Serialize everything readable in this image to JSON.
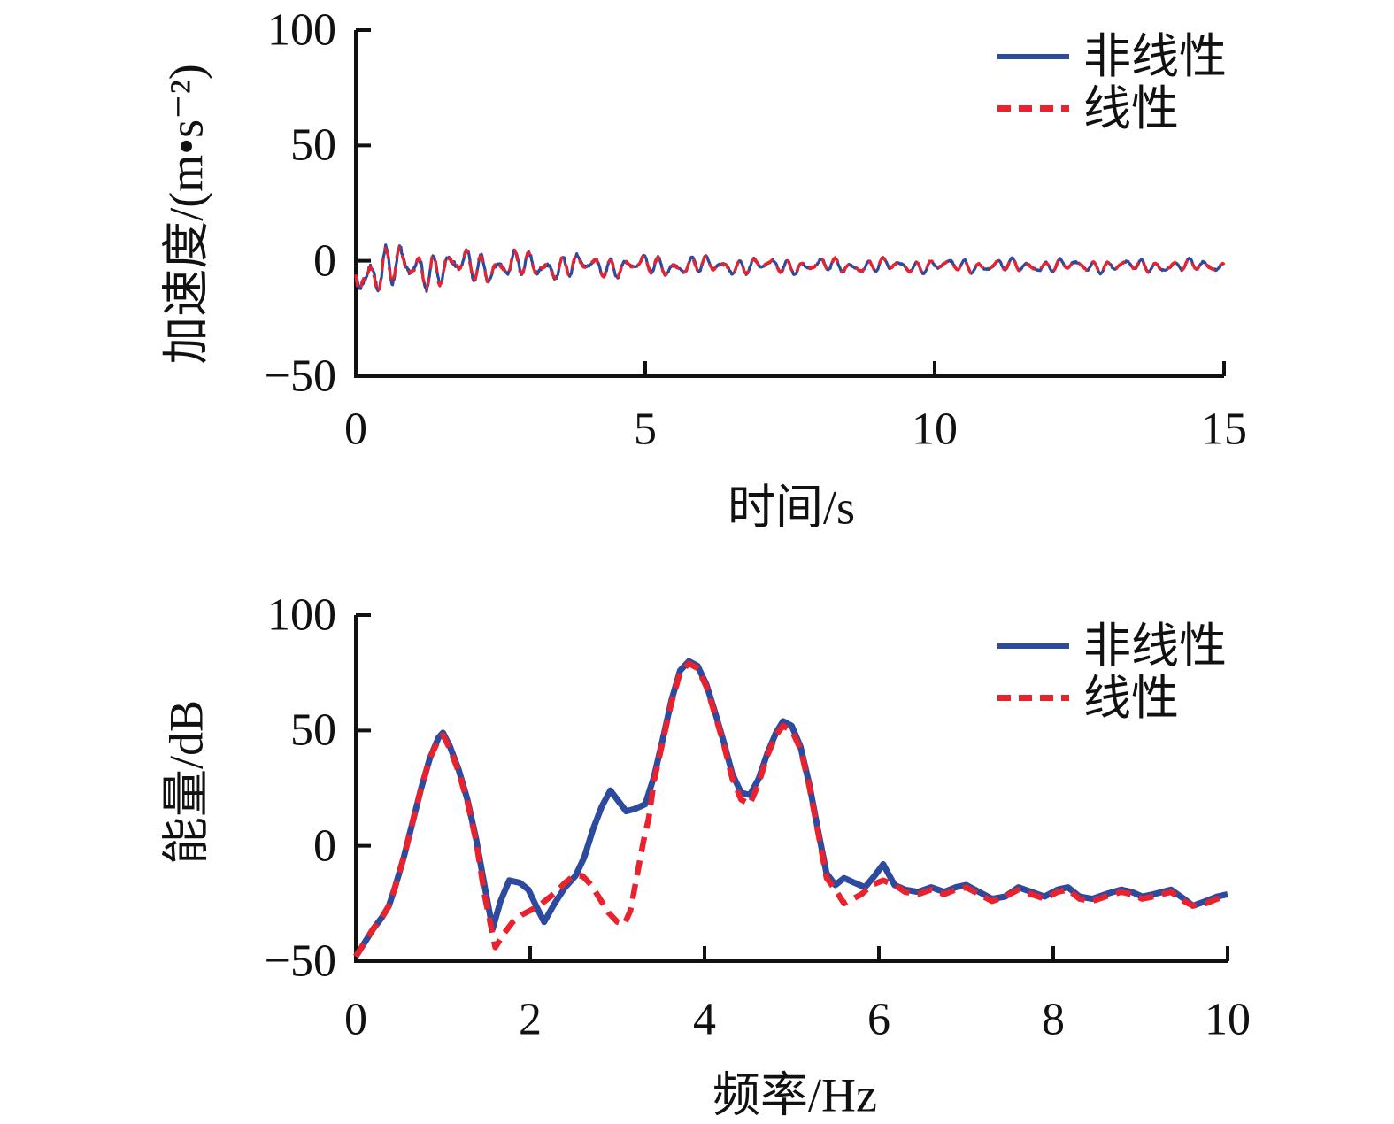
{
  "figure": {
    "background": "#ffffff",
    "description": "Two stacked line charts comparing nonlinear vs linear response: acceleration time history (top) and energy spectrum (bottom)"
  },
  "colors": {
    "nonlinear_blue": "#2e4a9e",
    "linear_red": "#e8232e",
    "axis": "#111111"
  },
  "chart_data": [
    {
      "type": "line",
      "title": "",
      "xlabel": "时间/s",
      "ylabel": "加速度/(m•s⁻²)",
      "xlim": [
        0,
        15
      ],
      "ylim": [
        -50,
        100
      ],
      "xticks": [
        0,
        5,
        10,
        15
      ],
      "yticks": [
        100,
        50,
        0,
        -50
      ],
      "grid": false,
      "legend_position": "top-right",
      "series": [
        {
          "name": "非线性",
          "color": "#2e4a9e",
          "line_style": "solid",
          "description": "noisy decaying oscillation: about ±13 m/s² (initial dip near −16) decaying to about ±3 m/s² at t=15 s, mean near −3",
          "signal_model": {
            "mean": {
              "base": -2.2,
              "a0": -2.3,
              "decay": 0.9
            },
            "envelope": {
              "base": 3.1,
              "a0": 10.6,
              "decay": 0.34
            },
            "components": [
              {
                "freq": 3.6,
                "weight": 0.52,
                "phase": 2.6
              },
              {
                "freq": 4.9,
                "weight": 0.26,
                "phase": 4.4
              },
              {
                "freq": 0.95,
                "weight": 0.27,
                "phase": 3.4
              }
            ],
            "noise_weight": 0.1,
            "dt": 0.012,
            "t_end": 15,
            "seed": 7
          }
        },
        {
          "name": "线性",
          "color": "#e8232e",
          "line_style": "dashed",
          "description": "nearly identical decaying oscillation overlaid as red dashes on the blue trace",
          "signal_model": {
            "mean": {
              "base": -2.2,
              "a0": -2.3,
              "decay": 0.9
            },
            "envelope": {
              "base": 3.0,
              "a0": 10.2,
              "decay": 0.34
            },
            "components": [
              {
                "freq": 3.6,
                "weight": 0.52,
                "phase": 2.72
              },
              {
                "freq": 4.9,
                "weight": 0.26,
                "phase": 4.5
              },
              {
                "freq": 0.95,
                "weight": 0.27,
                "phase": 3.45
              }
            ],
            "noise_weight": 0.1,
            "dt": 0.012,
            "t_end": 15,
            "seed": 13
          }
        }
      ]
    },
    {
      "type": "line",
      "title": "",
      "xlabel": "频率/Hz",
      "ylabel": "能量/dB",
      "xlim": [
        0,
        10
      ],
      "ylim": [
        -50,
        100
      ],
      "xticks": [
        0,
        2,
        4,
        6,
        8,
        10
      ],
      "yticks": [
        100,
        50,
        0,
        -50
      ],
      "grid": false,
      "legend_position": "top-right",
      "series": [
        {
          "name": "非线性",
          "color": "#2e4a9e",
          "line_style": "solid",
          "points": [
            [
              0,
              -48
            ],
            [
              0.1,
              -42
            ],
            [
              0.2,
              -36
            ],
            [
              0.3,
              -31
            ],
            [
              0.38,
              -26
            ],
            [
              0.45,
              -18
            ],
            [
              0.55,
              -5
            ],
            [
              0.65,
              10
            ],
            [
              0.75,
              25
            ],
            [
              0.85,
              38
            ],
            [
              0.95,
              47
            ],
            [
              1.0,
              49
            ],
            [
              1.08,
              43
            ],
            [
              1.18,
              33
            ],
            [
              1.28,
              20
            ],
            [
              1.38,
              3
            ],
            [
              1.48,
              -18
            ],
            [
              1.57,
              -36
            ],
            [
              1.66,
              -24
            ],
            [
              1.76,
              -15
            ],
            [
              1.88,
              -16
            ],
            [
              1.98,
              -19
            ],
            [
              2.08,
              -27
            ],
            [
              2.16,
              -33
            ],
            [
              2.28,
              -25
            ],
            [
              2.4,
              -18
            ],
            [
              2.52,
              -13
            ],
            [
              2.62,
              -5
            ],
            [
              2.72,
              7
            ],
            [
              2.82,
              17
            ],
            [
              2.92,
              24
            ],
            [
              3.0,
              20
            ],
            [
              3.1,
              15
            ],
            [
              3.2,
              16
            ],
            [
              3.32,
              18
            ],
            [
              3.42,
              30
            ],
            [
              3.52,
              46
            ],
            [
              3.62,
              63
            ],
            [
              3.72,
              76
            ],
            [
              3.82,
              80
            ],
            [
              3.92,
              78
            ],
            [
              4.02,
              70
            ],
            [
              4.12,
              58
            ],
            [
              4.22,
              45
            ],
            [
              4.32,
              31
            ],
            [
              4.42,
              23
            ],
            [
              4.52,
              22
            ],
            [
              4.62,
              29
            ],
            [
              4.72,
              40
            ],
            [
              4.82,
              49
            ],
            [
              4.9,
              54
            ],
            [
              5.0,
              52
            ],
            [
              5.1,
              43
            ],
            [
              5.2,
              27
            ],
            [
              5.3,
              7
            ],
            [
              5.4,
              -12
            ],
            [
              5.5,
              -17
            ],
            [
              5.6,
              -14
            ],
            [
              5.72,
              -16
            ],
            [
              5.84,
              -18
            ],
            [
              5.95,
              -13
            ],
            [
              6.05,
              -8
            ],
            [
              6.18,
              -17
            ],
            [
              6.3,
              -19
            ],
            [
              6.45,
              -20
            ],
            [
              6.6,
              -18
            ],
            [
              6.75,
              -20
            ],
            [
              6.88,
              -18
            ],
            [
              7.0,
              -17
            ],
            [
              7.15,
              -20
            ],
            [
              7.3,
              -23
            ],
            [
              7.45,
              -22
            ],
            [
              7.6,
              -18
            ],
            [
              7.75,
              -20
            ],
            [
              7.9,
              -22
            ],
            [
              8.05,
              -19
            ],
            [
              8.17,
              -18
            ],
            [
              8.3,
              -22
            ],
            [
              8.45,
              -23
            ],
            [
              8.6,
              -21
            ],
            [
              8.78,
              -19
            ],
            [
              8.9,
              -20
            ],
            [
              9.02,
              -22
            ],
            [
              9.15,
              -21
            ],
            [
              9.35,
              -19
            ],
            [
              9.5,
              -23
            ],
            [
              9.6,
              -26
            ],
            [
              9.75,
              -24
            ],
            [
              9.88,
              -22
            ],
            [
              10,
              -21
            ]
          ]
        },
        {
          "name": "线性",
          "color": "#e8232e",
          "line_style": "dashed",
          "points": [
            [
              0,
              -48
            ],
            [
              0.1,
              -42
            ],
            [
              0.2,
              -36
            ],
            [
              0.3,
              -31
            ],
            [
              0.38,
              -26
            ],
            [
              0.45,
              -18
            ],
            [
              0.55,
              -5
            ],
            [
              0.65,
              10
            ],
            [
              0.75,
              25
            ],
            [
              0.85,
              38
            ],
            [
              0.95,
              46
            ],
            [
              1.0,
              48
            ],
            [
              1.08,
              42
            ],
            [
              1.18,
              32
            ],
            [
              1.28,
              19
            ],
            [
              1.38,
              2
            ],
            [
              1.48,
              -22
            ],
            [
              1.6,
              -44
            ],
            [
              1.7,
              -38
            ],
            [
              1.8,
              -33
            ],
            [
              1.9,
              -30
            ],
            [
              2.0,
              -28
            ],
            [
              2.1,
              -26
            ],
            [
              2.2,
              -23
            ],
            [
              2.3,
              -20
            ],
            [
              2.4,
              -16
            ],
            [
              2.5,
              -13
            ],
            [
              2.6,
              -13
            ],
            [
              2.7,
              -17
            ],
            [
              2.8,
              -23
            ],
            [
              2.9,
              -29
            ],
            [
              3.0,
              -33
            ],
            [
              3.08,
              -34
            ],
            [
              3.15,
              -28
            ],
            [
              3.22,
              -14
            ],
            [
              3.3,
              2
            ],
            [
              3.36,
              12
            ],
            [
              3.42,
              28
            ],
            [
              3.52,
              45
            ],
            [
              3.62,
              62
            ],
            [
              3.72,
              75
            ],
            [
              3.82,
              79
            ],
            [
              3.92,
              77
            ],
            [
              4.02,
              69
            ],
            [
              4.12,
              57
            ],
            [
              4.22,
              44
            ],
            [
              4.32,
              29
            ],
            [
              4.42,
              20
            ],
            [
              4.52,
              18
            ],
            [
              4.62,
              27
            ],
            [
              4.72,
              39
            ],
            [
              4.82,
              48
            ],
            [
              4.9,
              52
            ],
            [
              5.0,
              50
            ],
            [
              5.1,
              42
            ],
            [
              5.2,
              26
            ],
            [
              5.3,
              6
            ],
            [
              5.4,
              -14
            ],
            [
              5.5,
              -19
            ],
            [
              5.6,
              -25
            ],
            [
              5.7,
              -23
            ],
            [
              5.8,
              -21
            ],
            [
              5.92,
              -17
            ],
            [
              6.05,
              -15
            ],
            [
              6.18,
              -17
            ],
            [
              6.3,
              -20
            ],
            [
              6.45,
              -21
            ],
            [
              6.6,
              -19
            ],
            [
              6.75,
              -21
            ],
            [
              6.88,
              -19
            ],
            [
              7.0,
              -18
            ],
            [
              7.15,
              -21
            ],
            [
              7.3,
              -24
            ],
            [
              7.45,
              -22
            ],
            [
              7.6,
              -19
            ],
            [
              7.75,
              -21
            ],
            [
              7.9,
              -23
            ],
            [
              8.05,
              -20
            ],
            [
              8.17,
              -19
            ],
            [
              8.3,
              -23
            ],
            [
              8.45,
              -24
            ],
            [
              8.6,
              -22
            ],
            [
              8.78,
              -20
            ],
            [
              8.9,
              -21
            ],
            [
              9.02,
              -23
            ],
            [
              9.15,
              -22
            ],
            [
              9.35,
              -20
            ],
            [
              9.5,
              -24
            ],
            [
              9.6,
              -26
            ],
            [
              9.75,
              -25
            ],
            [
              9.88,
              -23
            ],
            [
              10,
              -22
            ]
          ]
        }
      ]
    }
  ]
}
